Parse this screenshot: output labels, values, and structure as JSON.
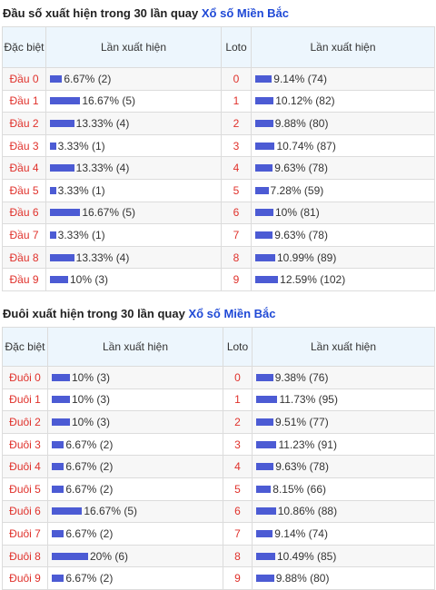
{
  "dau": {
    "title_prefix": "Đầu số xuất hiện trong 30 lần quay",
    "title_brand": "Xổ số Miền Bắc",
    "headers": {
      "col1": "Đặc biệt",
      "col2": "Lần xuất hiện",
      "col3": "Loto",
      "col4": "Lần xuất hiện"
    },
    "rows": [
      {
        "label": "Đầu 0",
        "db_text": "6.67% (2)",
        "db_pct": 6.67,
        "loto": "0",
        "loto_text": "9.14% (74)",
        "loto_pct": 9.14
      },
      {
        "label": "Đầu 1",
        "db_text": "16.67% (5)",
        "db_pct": 16.67,
        "loto": "1",
        "loto_text": "10.12% (82)",
        "loto_pct": 10.12
      },
      {
        "label": "Đầu 2",
        "db_text": "13.33% (4)",
        "db_pct": 13.33,
        "loto": "2",
        "loto_text": "9.88% (80)",
        "loto_pct": 9.88
      },
      {
        "label": "Đầu 3",
        "db_text": "3.33% (1)",
        "db_pct": 3.33,
        "loto": "3",
        "loto_text": "10.74% (87)",
        "loto_pct": 10.74
      },
      {
        "label": "Đầu 4",
        "db_text": "13.33% (4)",
        "db_pct": 13.33,
        "loto": "4",
        "loto_text": "9.63% (78)",
        "loto_pct": 9.63
      },
      {
        "label": "Đầu 5",
        "db_text": "3.33% (1)",
        "db_pct": 3.33,
        "loto": "5",
        "loto_text": "7.28% (59)",
        "loto_pct": 7.28
      },
      {
        "label": "Đầu 6",
        "db_text": "16.67% (5)",
        "db_pct": 16.67,
        "loto": "6",
        "loto_text": "10% (81)",
        "loto_pct": 10.0
      },
      {
        "label": "Đầu 7",
        "db_text": "3.33% (1)",
        "db_pct": 3.33,
        "loto": "7",
        "loto_text": "9.63% (78)",
        "loto_pct": 9.63
      },
      {
        "label": "Đầu 8",
        "db_text": "13.33% (4)",
        "db_pct": 13.33,
        "loto": "8",
        "loto_text": "10.99% (89)",
        "loto_pct": 10.99
      },
      {
        "label": "Đầu 9",
        "db_text": "10% (3)",
        "db_pct": 10.0,
        "loto": "9",
        "loto_text": "12.59% (102)",
        "loto_pct": 12.59
      }
    ]
  },
  "duoi": {
    "title_prefix": "Đuôi xuất hiện trong 30 lần quay",
    "title_brand": "Xổ số Miền Bắc",
    "headers": {
      "col1": "Đặc biệt",
      "col2": "Lần xuất hiện",
      "col3": "Loto",
      "col4": "Lần xuất hiện"
    },
    "rows": [
      {
        "label": "Đuôi 0",
        "db_text": "10% (3)",
        "db_pct": 10.0,
        "loto": "0",
        "loto_text": "9.38% (76)",
        "loto_pct": 9.38
      },
      {
        "label": "Đuôi 1",
        "db_text": "10% (3)",
        "db_pct": 10.0,
        "loto": "1",
        "loto_text": "11.73% (95)",
        "loto_pct": 11.73
      },
      {
        "label": "Đuôi 2",
        "db_text": "10% (3)",
        "db_pct": 10.0,
        "loto": "2",
        "loto_text": "9.51% (77)",
        "loto_pct": 9.51
      },
      {
        "label": "Đuôi 3",
        "db_text": "6.67% (2)",
        "db_pct": 6.67,
        "loto": "3",
        "loto_text": "11.23% (91)",
        "loto_pct": 11.23
      },
      {
        "label": "Đuôi 4",
        "db_text": "6.67% (2)",
        "db_pct": 6.67,
        "loto": "4",
        "loto_text": "9.63% (78)",
        "loto_pct": 9.63
      },
      {
        "label": "Đuôi 5",
        "db_text": "6.67% (2)",
        "db_pct": 6.67,
        "loto": "5",
        "loto_text": "8.15% (66)",
        "loto_pct": 8.15
      },
      {
        "label": "Đuôi 6",
        "db_text": "16.67% (5)",
        "db_pct": 16.67,
        "loto": "6",
        "loto_text": "10.86% (88)",
        "loto_pct": 10.86
      },
      {
        "label": "Đuôi 7",
        "db_text": "6.67% (2)",
        "db_pct": 6.67,
        "loto": "7",
        "loto_text": "9.14% (74)",
        "loto_pct": 9.14
      },
      {
        "label": "Đuôi 8",
        "db_text": "20% (6)",
        "db_pct": 20.0,
        "loto": "8",
        "loto_text": "10.49% (85)",
        "loto_pct": 10.49
      },
      {
        "label": "Đuôi 9",
        "db_text": "6.67% (2)",
        "db_pct": 6.67,
        "loto": "9",
        "loto_text": "9.88% (80)",
        "loto_pct": 9.88
      }
    ]
  },
  "colors": {
    "bar": "#4c5bd4",
    "label_red": "#e0312b",
    "brand_blue": "#1f49d6",
    "header_bg": "#edf6fd"
  }
}
